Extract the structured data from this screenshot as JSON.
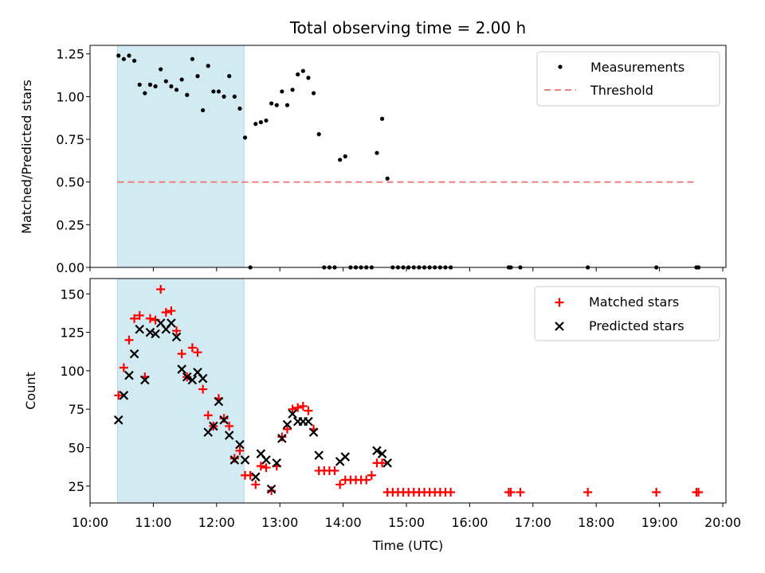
{
  "title": "Total observing time = 2.00 h",
  "xlabel": "Time (UTC)",
  "x_ticks": [
    "10:00",
    "11:00",
    "12:00",
    "13:00",
    "14:00",
    "15:00",
    "16:00",
    "17:00",
    "18:00",
    "19:00",
    "20:00"
  ],
  "colors": {
    "measurements": "#000000",
    "threshold": "#f08080",
    "matched": "#ff0000",
    "predicted": "#000000",
    "shade": "#add8e6"
  },
  "chart_data": [
    {
      "type": "scatter",
      "ylabel": "Matched/Predicted stars",
      "xlim": [
        "10:00",
        "20:03"
      ],
      "ylim": [
        0,
        1.3
      ],
      "y_ticks": [
        "0.00",
        "0.25",
        "0.50",
        "0.75",
        "1.00",
        "1.25"
      ],
      "shaded_region": [
        "10:26",
        "12:26"
      ],
      "legend": [
        "Measurements",
        "Threshold"
      ],
      "legend_position": "top-right",
      "threshold": {
        "y": 0.5,
        "x": [
          "10:26",
          "19:35"
        ]
      },
      "series": [
        {
          "name": "Measurements",
          "points": [
            [
              "10:27",
              1.24
            ],
            [
              "10:32",
              1.22
            ],
            [
              "10:37",
              1.24
            ],
            [
              "10:42",
              1.21
            ],
            [
              "10:47",
              1.07
            ],
            [
              "10:52",
              1.02
            ],
            [
              "10:57",
              1.07
            ],
            [
              "11:02",
              1.06
            ],
            [
              "11:07",
              1.16
            ],
            [
              "11:12",
              1.09
            ],
            [
              "11:17",
              1.06
            ],
            [
              "11:22",
              1.04
            ],
            [
              "11:27",
              1.1
            ],
            [
              "11:32",
              1.01
            ],
            [
              "11:37",
              1.22
            ],
            [
              "11:42",
              1.12
            ],
            [
              "11:47",
              0.92
            ],
            [
              "11:52",
              1.18
            ],
            [
              "11:57",
              1.03
            ],
            [
              "12:02",
              1.03
            ],
            [
              "12:07",
              1.0
            ],
            [
              "12:12",
              1.12
            ],
            [
              "12:17",
              1.0
            ],
            [
              "12:22",
              0.93
            ],
            [
              "12:27",
              0.76
            ],
            [
              "12:32",
              0.0
            ],
            [
              "12:37",
              0.84
            ],
            [
              "12:42",
              0.85
            ],
            [
              "12:47",
              0.86
            ],
            [
              "12:52",
              0.96
            ],
            [
              "12:57",
              0.95
            ],
            [
              "13:02",
              1.03
            ],
            [
              "13:07",
              0.95
            ],
            [
              "13:12",
              1.04
            ],
            [
              "13:17",
              1.13
            ],
            [
              "13:22",
              1.15
            ],
            [
              "13:27",
              1.11
            ],
            [
              "13:32",
              1.02
            ],
            [
              "13:37",
              0.78
            ],
            [
              "13:42",
              0.0
            ],
            [
              "13:47",
              0.0
            ],
            [
              "13:52",
              0.0
            ],
            [
              "13:57",
              0.63
            ],
            [
              "14:02",
              0.65
            ],
            [
              "14:07",
              0.0
            ],
            [
              "14:12",
              0.0
            ],
            [
              "14:17",
              0.0
            ],
            [
              "14:22",
              0.0
            ],
            [
              "14:27",
              0.0
            ],
            [
              "14:32",
              0.67
            ],
            [
              "14:37",
              0.87
            ],
            [
              "14:42",
              0.52
            ],
            [
              "14:47",
              0.0
            ],
            [
              "14:52",
              0.0
            ],
            [
              "14:57",
              0.0
            ],
            [
              "15:02",
              0.0
            ],
            [
              "15:07",
              0.0
            ],
            [
              "15:12",
              0.0
            ],
            [
              "15:17",
              0.0
            ],
            [
              "15:22",
              0.0
            ],
            [
              "15:27",
              0.0
            ],
            [
              "15:32",
              0.0
            ],
            [
              "15:37",
              0.0
            ],
            [
              "15:42",
              0.0
            ],
            [
              "16:37",
              0.0
            ],
            [
              "16:39",
              0.0
            ],
            [
              "16:48",
              0.0
            ],
            [
              "17:52",
              0.0
            ],
            [
              "18:57",
              0.0
            ],
            [
              "19:35",
              0.0
            ],
            [
              "19:37",
              0.0
            ]
          ]
        }
      ]
    },
    {
      "type": "scatter",
      "ylabel": "Count",
      "xlim": [
        "10:00",
        "20:03"
      ],
      "ylim": [
        14,
        160
      ],
      "y_ticks": [
        "25",
        "50",
        "75",
        "100",
        "125",
        "150"
      ],
      "shaded_region": [
        "10:26",
        "12:26"
      ],
      "legend": [
        "Matched stars",
        "Predicted stars"
      ],
      "legend_position": "top-right",
      "series": [
        {
          "name": "Matched stars",
          "points": [
            [
              "10:27",
              84
            ],
            [
              "10:32",
              102
            ],
            [
              "10:37",
              120
            ],
            [
              "10:42",
              134
            ],
            [
              "10:47",
              136
            ],
            [
              "10:52",
              96
            ],
            [
              "10:57",
              134
            ],
            [
              "11:02",
              133
            ],
            [
              "11:07",
              153
            ],
            [
              "11:12",
              138
            ],
            [
              "11:17",
              139
            ],
            [
              "11:22",
              126
            ],
            [
              "11:27",
              111
            ],
            [
              "11:32",
              96
            ],
            [
              "11:37",
              115
            ],
            [
              "11:42",
              112
            ],
            [
              "11:47",
              88
            ],
            [
              "11:52",
              71
            ],
            [
              "11:57",
              64
            ],
            [
              "12:02",
              82
            ],
            [
              "12:07",
              69
            ],
            [
              "12:12",
              64
            ],
            [
              "12:17",
              43
            ],
            [
              "12:22",
              48
            ],
            [
              "12:27",
              32
            ],
            [
              "12:32",
              32
            ],
            [
              "12:37",
              26
            ],
            [
              "12:42",
              38
            ],
            [
              "12:47",
              37
            ],
            [
              "12:52",
              22
            ],
            [
              "12:57",
              38
            ],
            [
              "13:02",
              57
            ],
            [
              "13:07",
              62
            ],
            [
              "13:12",
              75
            ],
            [
              "13:17",
              76
            ],
            [
              "13:22",
              77
            ],
            [
              "13:27",
              74
            ],
            [
              "13:32",
              62
            ],
            [
              "13:37",
              35
            ],
            [
              "13:42",
              35
            ],
            [
              "13:47",
              35
            ],
            [
              "13:52",
              35
            ],
            [
              "13:57",
              26
            ],
            [
              "14:02",
              29
            ],
            [
              "14:07",
              29
            ],
            [
              "14:12",
              29
            ],
            [
              "14:17",
              29
            ],
            [
              "14:22",
              29
            ],
            [
              "14:27",
              32
            ],
            [
              "14:32",
              40
            ],
            [
              "14:37",
              40
            ],
            [
              "14:42",
              21
            ],
            [
              "14:47",
              21
            ],
            [
              "14:52",
              21
            ],
            [
              "14:57",
              21
            ],
            [
              "15:02",
              21
            ],
            [
              "15:07",
              21
            ],
            [
              "15:12",
              21
            ],
            [
              "15:17",
              21
            ],
            [
              "15:22",
              21
            ],
            [
              "15:27",
              21
            ],
            [
              "15:32",
              21
            ],
            [
              "15:37",
              21
            ],
            [
              "15:42",
              21
            ],
            [
              "16:37",
              21
            ],
            [
              "16:39",
              21
            ],
            [
              "16:48",
              21
            ],
            [
              "17:52",
              21
            ],
            [
              "18:57",
              21
            ],
            [
              "19:35",
              21
            ],
            [
              "19:37",
              21
            ]
          ]
        },
        {
          "name": "Predicted stars",
          "points": [
            [
              "10:27",
              68
            ],
            [
              "10:32",
              84
            ],
            [
              "10:37",
              97
            ],
            [
              "10:42",
              111
            ],
            [
              "10:47",
              127
            ],
            [
              "10:52",
              94
            ],
            [
              "10:57",
              125
            ],
            [
              "11:02",
              124
            ],
            [
              "11:07",
              131
            ],
            [
              "11:12",
              127
            ],
            [
              "11:17",
              131
            ],
            [
              "11:22",
              122
            ],
            [
              "11:27",
              101
            ],
            [
              "11:32",
              96
            ],
            [
              "11:37",
              94
            ],
            [
              "11:42",
              99
            ],
            [
              "11:47",
              95
            ],
            [
              "11:52",
              60
            ],
            [
              "11:57",
              64
            ],
            [
              "12:02",
              80
            ],
            [
              "12:07",
              68
            ],
            [
              "12:12",
              58
            ],
            [
              "12:17",
              42
            ],
            [
              "12:22",
              52
            ],
            [
              "12:27",
              42
            ],
            [
              "12:37",
              31
            ],
            [
              "12:42",
              46
            ],
            [
              "12:47",
              42
            ],
            [
              "12:52",
              23
            ],
            [
              "12:57",
              40
            ],
            [
              "13:02",
              56
            ],
            [
              "13:07",
              65
            ],
            [
              "13:12",
              72
            ],
            [
              "13:17",
              67
            ],
            [
              "13:22",
              67
            ],
            [
              "13:27",
              67
            ],
            [
              "13:32",
              60
            ],
            [
              "13:37",
              45
            ],
            [
              "13:57",
              41
            ],
            [
              "14:02",
              44
            ],
            [
              "14:32",
              48
            ],
            [
              "14:37",
              46
            ],
            [
              "14:42",
              40
            ]
          ]
        }
      ]
    }
  ]
}
